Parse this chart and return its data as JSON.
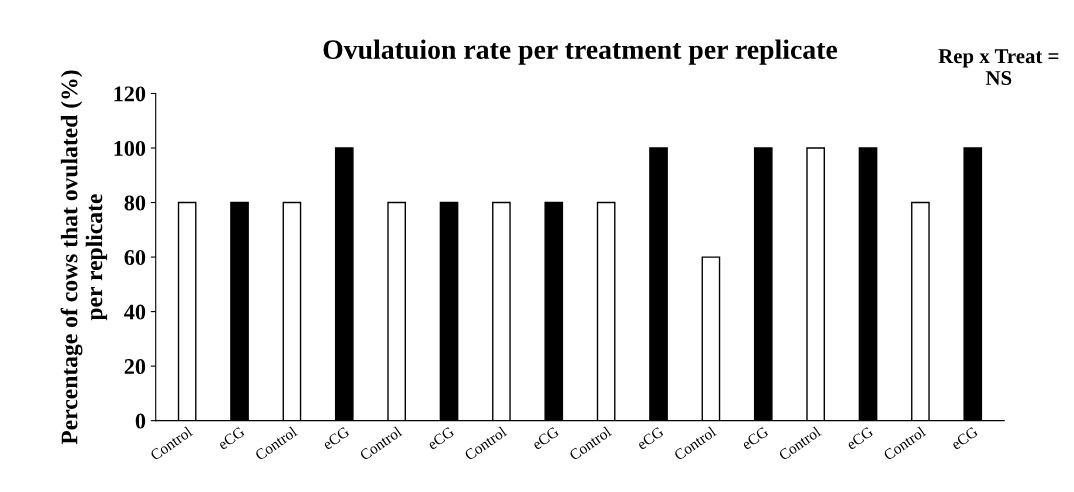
{
  "chart_data": {
    "type": "bar",
    "title": "Ovulatuion rate per treatment per replicate",
    "ylabel": "Percentage of cows that ovulated (%)\nper replicate",
    "categories": [
      "Control",
      "eCG",
      "Control",
      "eCG",
      "Control",
      "eCG",
      "Control",
      "eCG",
      "Control",
      "eCG",
      "Control",
      "eCG",
      "Control",
      "eCG",
      "Control",
      "eCG"
    ],
    "values": [
      80,
      80,
      80,
      100,
      80,
      80,
      80,
      80,
      80,
      100,
      60,
      100,
      100,
      100,
      80,
      100
    ],
    "colors": [
      "#ffffff",
      "#000000",
      "#ffffff",
      "#000000",
      "#ffffff",
      "#000000",
      "#ffffff",
      "#000000",
      "#ffffff",
      "#000000",
      "#ffffff",
      "#000000",
      "#ffffff",
      "#000000",
      "#ffffff",
      "#000000"
    ],
    "ylim": [
      0,
      120
    ],
    "yticks": [
      0,
      20,
      40,
      60,
      80,
      100,
      120
    ],
    "grid": false,
    "legend": false,
    "annotations": [
      "Rep x Treat =\nNS"
    ]
  }
}
